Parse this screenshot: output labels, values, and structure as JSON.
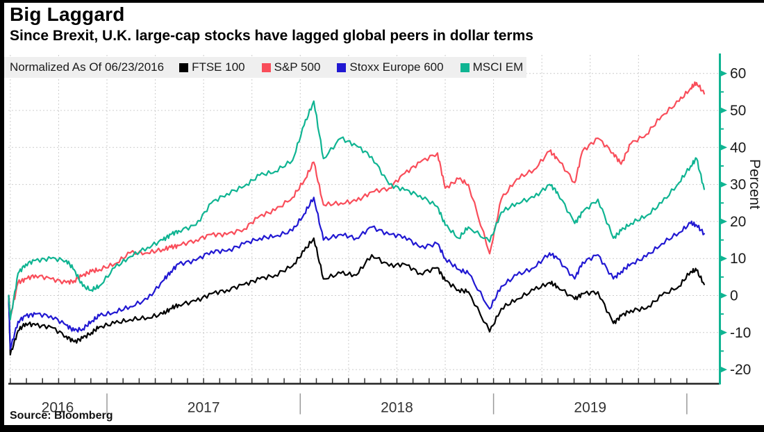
{
  "header": {
    "title": "Big Laggard",
    "subtitle": "Since Brexit, U.K. large-cap stocks have lagged global peers in dollar terms"
  },
  "legend": {
    "note": "Normalized As Of 06/23/2016",
    "series": [
      {
        "label": "FTSE 100",
        "color": "#000000"
      },
      {
        "label": "S&P 500",
        "color": "#f94d5a"
      },
      {
        "label": "Stoxx Europe 600",
        "color": "#2118d2"
      },
      {
        "label": "MSCI EM",
        "color": "#0fb492"
      }
    ]
  },
  "axes": {
    "y": {
      "label": "Percent",
      "ticks": [
        60,
        50,
        40,
        30,
        20,
        10,
        0,
        -10,
        -20
      ],
      "minor_step": 5
    },
    "x": {
      "year_labels": [
        "2016",
        "2017",
        "2018",
        "2019"
      ],
      "year_boundaries": [
        2017,
        2018,
        2019,
        2020
      ]
    }
  },
  "footer": {
    "source": "Source: Bloomberg"
  },
  "styles": {
    "grid": "#cccccc",
    "axis_line": "#0fb492",
    "legend_bg": "#efefef",
    "tick_label": "#1a1a1a",
    "year_label": "#333333",
    "separator": "#999999"
  },
  "chart_data": {
    "type": "line",
    "title": "Big Laggard",
    "xlabel": "",
    "ylabel": "Percent",
    "ylim": [
      -23,
      62
    ],
    "xlim": [
      2016.48,
      2020.1
    ],
    "grid": "dotted, horizontal every 10 pct, vertical quarterly",
    "legend_position": "top bar",
    "x_unit": "decimal years (normalized from 06/23/2016)",
    "x": [
      2016.48,
      2016.5,
      2016.54,
      2016.58,
      2016.63,
      2016.71,
      2016.79,
      2016.83,
      2016.875,
      2016.92,
      2016.96,
      2017.04,
      2017.12,
      2017.21,
      2017.29,
      2017.33,
      2017.37,
      2017.46,
      2017.54,
      2017.62,
      2017.71,
      2017.79,
      2017.87,
      2017.96,
      2018.02,
      2018.07,
      2018.12,
      2018.21,
      2018.29,
      2018.37,
      2018.46,
      2018.54,
      2018.62,
      2018.71,
      2018.75,
      2018.82,
      2018.87,
      2018.98,
      2019.04,
      2019.12,
      2019.21,
      2019.29,
      2019.33,
      2019.42,
      2019.46,
      2019.54,
      2019.62,
      2019.66,
      2019.71,
      2019.79,
      2019.87,
      2019.96,
      2020.02,
      2020.05,
      2020.09
    ],
    "series": [
      {
        "name": "FTSE 100",
        "color": "#000000",
        "values": [
          0,
          -16,
          -9.5,
          -7.5,
          -8,
          -8.5,
          -11,
          -12.5,
          -11.5,
          -10,
          -8.5,
          -7.5,
          -6.5,
          -6,
          -5,
          -3.5,
          -2.5,
          -1.5,
          0.5,
          1.5,
          3,
          4.5,
          5.5,
          8,
          12,
          15.5,
          4.5,
          6,
          5.5,
          11,
          8,
          8.5,
          6,
          7.5,
          4,
          1.5,
          1,
          -9.8,
          -3.5,
          -1,
          1.5,
          3.5,
          2.5,
          -1,
          0.5,
          1,
          -7.5,
          -5.5,
          -4,
          -3.5,
          0,
          2.5,
          6.5,
          6.8,
          3
        ]
      },
      {
        "name": "S&P 500",
        "color": "#f94d5a",
        "values": [
          0,
          -5.7,
          3.5,
          4.5,
          5.5,
          4.5,
          3.5,
          4,
          5.5,
          6.5,
          7,
          8.5,
          11.5,
          11.5,
          12.5,
          13,
          13.5,
          15,
          16.5,
          16.5,
          18,
          21.5,
          23,
          26.5,
          31,
          36,
          24.5,
          25,
          25.5,
          28,
          29,
          33,
          36,
          38.5,
          29,
          31.5,
          30,
          11.3,
          26,
          31.5,
          34,
          39,
          37,
          30.5,
          39,
          42.5,
          38.5,
          35.5,
          41,
          43.5,
          48.5,
          52.5,
          56,
          57.5,
          54.5
        ]
      },
      {
        "name": "Stoxx Europe 600",
        "color": "#2118d2",
        "values": [
          0,
          -14.5,
          -7,
          -5.5,
          -5,
          -5.5,
          -8,
          -9.5,
          -9,
          -7,
          -5.5,
          -4.5,
          -3,
          -1,
          4,
          6.5,
          8.5,
          9.5,
          12,
          12,
          14,
          15.5,
          16,
          17.5,
          22,
          26.5,
          15,
          16.5,
          15.5,
          18.5,
          16.5,
          16,
          13,
          14,
          10,
          7,
          6,
          -3.6,
          2.5,
          5.5,
          7.5,
          11.5,
          10,
          4.5,
          9,
          11,
          4.5,
          6.5,
          8.5,
          10.5,
          14,
          17,
          19.5,
          19,
          16.7
        ]
      },
      {
        "name": "MSCI EM",
        "color": "#0fb492",
        "values": [
          0,
          -6.5,
          6,
          8.5,
          9.5,
          10,
          9.5,
          7,
          2.5,
          1.5,
          2.5,
          7.5,
          10.5,
          13,
          15,
          16.5,
          17.5,
          19,
          25,
          27.5,
          29.5,
          32.5,
          33.5,
          36.5,
          46,
          52.5,
          37,
          42.5,
          40.5,
          37.5,
          30,
          28.5,
          27,
          24,
          19,
          15.5,
          18.5,
          14.5,
          22.5,
          25,
          26.5,
          30,
          28,
          19.5,
          22.5,
          26,
          15.5,
          17.5,
          19.5,
          21.5,
          25,
          30.5,
          35,
          37,
          28.7
        ]
      }
    ]
  }
}
